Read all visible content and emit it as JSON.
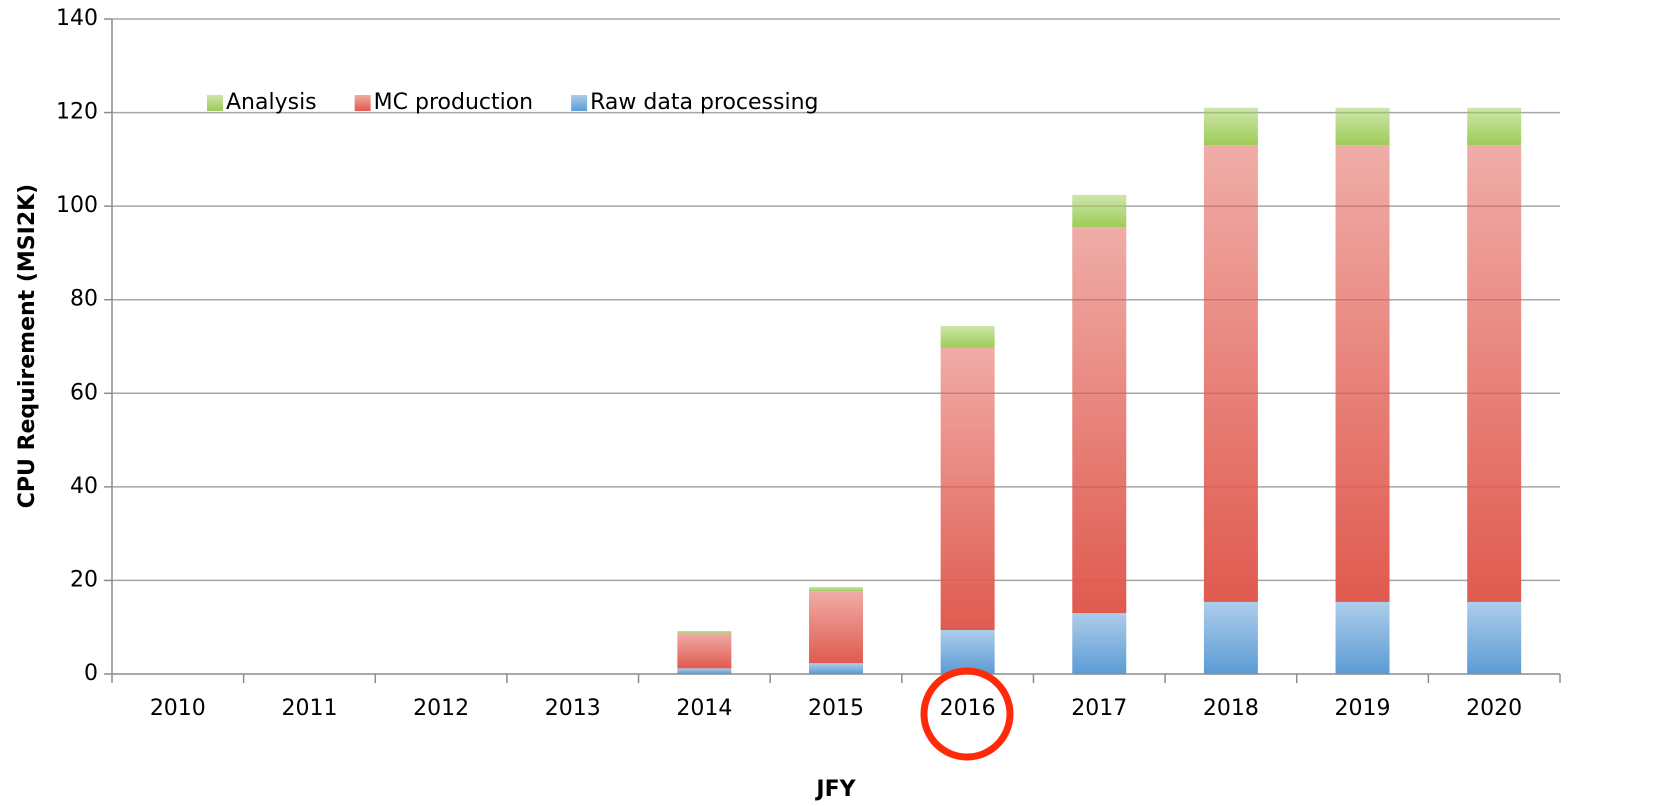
{
  "chart_data": {
    "type": "stacked_bar",
    "x_label": "JFY",
    "y_label": "CPU Requirement (MSI2K)",
    "categories": [
      "2010",
      "2011",
      "2012",
      "2013",
      "2014",
      "2015",
      "2016",
      "2017",
      "2018",
      "2019",
      "2020"
    ],
    "series": [
      {
        "name": "Raw data processing",
        "color": "#5b9bd5",
        "values": [
          0,
          0,
          0,
          0,
          1.2,
          2.3,
          9.4,
          13.0,
          15.4,
          15.4,
          15.4
        ]
      },
      {
        "name": "MC production",
        "color": "#e05a4f",
        "values": [
          0,
          0,
          0,
          0,
          7.6,
          15.4,
          60.3,
          82.5,
          97.6,
          97.6,
          97.6
        ]
      },
      {
        "name": "Analysis",
        "color": "#9dcc57",
        "values": [
          0,
          0,
          0,
          0,
          0.4,
          0.9,
          4.7,
          6.9,
          8.0,
          8.0,
          8.0
        ]
      }
    ],
    "ylim": [
      0,
      140
    ],
    "yticks": [
      0,
      20,
      40,
      60,
      80,
      100,
      120,
      140
    ],
    "grid": true,
    "legend": "upper left"
  }
}
